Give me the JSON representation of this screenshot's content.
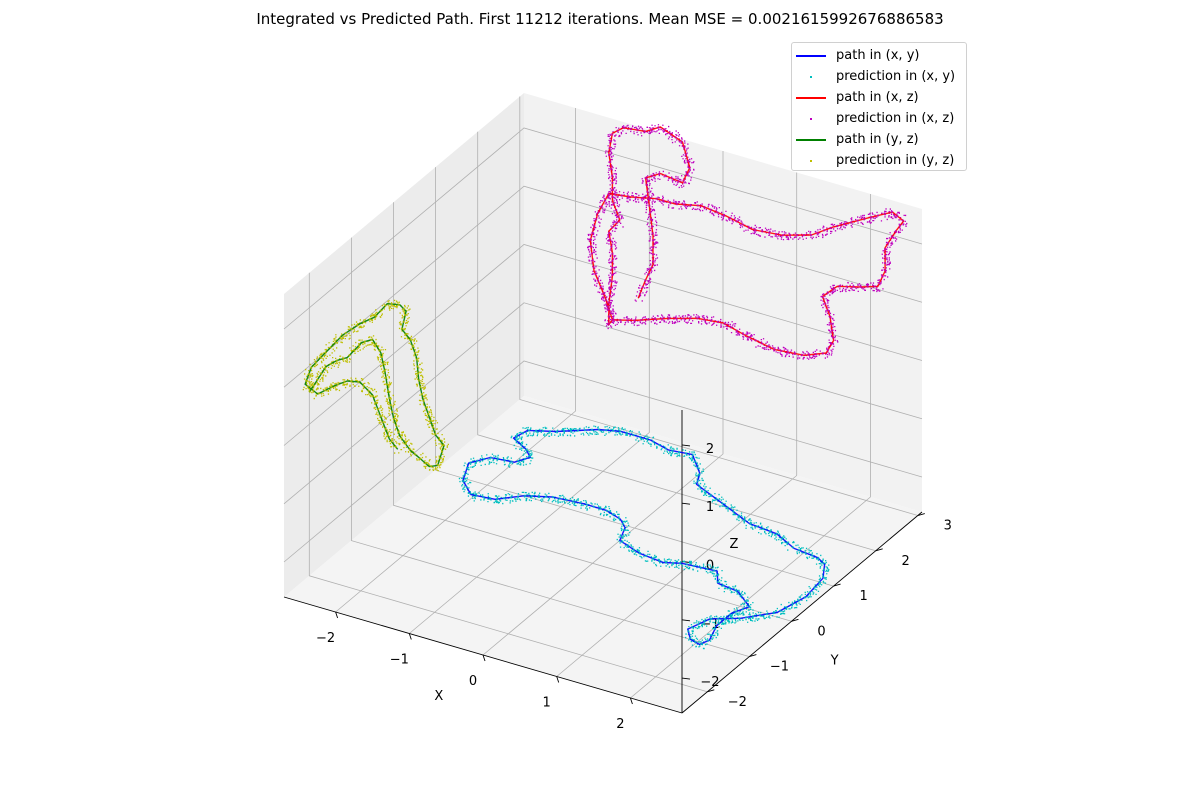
{
  "chart_data": {
    "type": "scatter",
    "projection": "3d",
    "title": "Integrated vs Predicted Path. First 11212 iterations. Mean MSE = 0.0021615992676886583",
    "xlabel": "X",
    "ylabel": "Y",
    "zlabel": "Z",
    "xlim": [
      -2.7,
      2.7
    ],
    "ylim": [
      -2.6,
      3.1
    ],
    "zlim": [
      -2.6,
      2.6
    ],
    "xticks": [
      "−2",
      "−1",
      "0",
      "1",
      "2"
    ],
    "yticks": [
      "−2",
      "−1",
      "0",
      "1",
      "2",
      "3"
    ],
    "zticks": [
      "−2",
      "−1",
      "0",
      "1",
      "2"
    ],
    "grid": true,
    "legend_position": "top-right",
    "legend": [
      {
        "label": "path in (x, y)",
        "kind": "line",
        "color": "#0000ff"
      },
      {
        "label": "prediction in (x, y)",
        "kind": "marker",
        "color": "#00bfbf"
      },
      {
        "label": "path in (x, z)",
        "kind": "line",
        "color": "#ff0000"
      },
      {
        "label": "prediction in (x, z)",
        "kind": "marker",
        "color": "#bf00bf"
      },
      {
        "label": "path in (y, z)",
        "kind": "line",
        "color": "#008000"
      },
      {
        "label": "prediction in (y, z)",
        "kind": "marker",
        "color": "#bfbf00"
      }
    ],
    "series": [
      {
        "plane": "xy",
        "fixed": "z",
        "fixed_value": -2.6,
        "path_color": "#0000ff",
        "prediction_color": "#00bfbf",
        "points": [
          [
            -1.55,
            2.85
          ],
          [
            -1.3,
            2.95
          ],
          [
            -0.9,
            2.95
          ],
          [
            -0.6,
            2.85
          ],
          [
            -0.3,
            2.9
          ],
          [
            0.0,
            2.55
          ],
          [
            0.1,
            2.3
          ],
          [
            0.4,
            2.15
          ],
          [
            0.8,
            1.95
          ],
          [
            1.1,
            1.8
          ],
          [
            1.5,
            1.75
          ],
          [
            1.85,
            1.55
          ],
          [
            2.2,
            1.5
          ],
          [
            2.35,
            1.4
          ],
          [
            2.5,
            1.1
          ],
          [
            2.55,
            0.6
          ],
          [
            2.45,
            0.1
          ],
          [
            2.15,
            -0.25
          ],
          [
            1.85,
            -0.45
          ],
          [
            1.75,
            -0.8
          ],
          [
            1.9,
            -1.0
          ],
          [
            2.05,
            -1.05
          ],
          [
            2.1,
            -0.9
          ],
          [
            2.0,
            -0.55
          ],
          [
            2.0,
            -0.2
          ],
          [
            2.1,
            0.05
          ],
          [
            1.8,
            0.3
          ],
          [
            1.5,
            0.35
          ],
          [
            1.35,
            0.6
          ],
          [
            0.9,
            0.55
          ],
          [
            0.7,
            0.45
          ],
          [
            0.35,
            0.5
          ],
          [
            0.0,
            0.65
          ],
          [
            -0.1,
            0.95
          ],
          [
            -0.25,
            1.1
          ],
          [
            -0.5,
            1.2
          ],
          [
            -0.8,
            1.2
          ],
          [
            -1.2,
            1.15
          ],
          [
            -1.5,
            1.0
          ],
          [
            -1.75,
            0.75
          ],
          [
            -2.05,
            0.7
          ],
          [
            -2.3,
            0.95
          ],
          [
            -2.45,
            1.35
          ],
          [
            -2.3,
            1.6
          ],
          [
            -2.0,
            1.65
          ],
          [
            -1.9,
            1.85
          ],
          [
            -2.05,
            2.0
          ],
          [
            -2.3,
            2.15
          ],
          [
            -2.25,
            2.4
          ],
          [
            -1.95,
            2.55
          ],
          [
            -1.55,
            2.85
          ]
        ]
      },
      {
        "plane": "xz",
        "fixed": "y",
        "fixed_value": 3.1,
        "path_color": "#ff0000",
        "prediction_color": "#bf00bf",
        "points": [
          [
            -1.5,
            -0.85
          ],
          [
            -1.2,
            -0.75
          ],
          [
            -0.75,
            -0.55
          ],
          [
            -0.35,
            -0.4
          ],
          [
            0.0,
            -0.35
          ],
          [
            0.3,
            -0.45
          ],
          [
            0.7,
            -0.55
          ],
          [
            1.1,
            -0.5
          ],
          [
            1.4,
            -0.35
          ],
          [
            1.5,
            -0.1
          ],
          [
            1.45,
            0.3
          ],
          [
            1.35,
            0.6
          ],
          [
            1.55,
            0.85
          ],
          [
            1.85,
            0.95
          ],
          [
            2.1,
            1.05
          ],
          [
            2.2,
            1.35
          ],
          [
            2.2,
            1.75
          ],
          [
            2.35,
            2.1
          ],
          [
            2.45,
            2.3
          ],
          [
            2.3,
            2.4
          ],
          [
            2.0,
            2.2
          ],
          [
            1.5,
            1.85
          ],
          [
            1.2,
            1.6
          ],
          [
            0.8,
            1.45
          ],
          [
            0.4,
            1.4
          ],
          [
            0.05,
            1.5
          ],
          [
            -0.3,
            1.55
          ],
          [
            -0.65,
            1.45
          ],
          [
            -0.9,
            1.45
          ],
          [
            -1.25,
            1.35
          ],
          [
            -1.55,
            1.3
          ],
          [
            -1.7,
            0.9
          ],
          [
            -1.8,
            0.4
          ],
          [
            -1.75,
            -0.1
          ],
          [
            -1.6,
            -0.5
          ],
          [
            -1.5,
            -0.85
          ],
          [
            -1.55,
            -0.95
          ],
          [
            -1.55,
            -0.6
          ],
          [
            -1.5,
            -0.1
          ],
          [
            -1.5,
            0.3
          ],
          [
            -1.55,
            0.65
          ],
          [
            -1.4,
            0.9
          ],
          [
            -1.5,
            1.2
          ],
          [
            -1.5,
            1.6
          ],
          [
            -1.55,
            2.0
          ],
          [
            -1.5,
            2.35
          ],
          [
            -1.35,
            2.5
          ],
          [
            -1.05,
            2.55
          ],
          [
            -0.85,
            2.7
          ],
          [
            -0.55,
            2.55
          ],
          [
            -0.45,
            2.15
          ],
          [
            -0.55,
            1.85
          ],
          [
            -0.85,
            1.9
          ],
          [
            -1.05,
            1.75
          ],
          [
            -1.0,
            1.3
          ],
          [
            -0.95,
            0.8
          ],
          [
            -0.95,
            0.3
          ],
          [
            -1.05,
            0.0
          ],
          [
            -1.15,
            -0.35
          ]
        ]
      },
      {
        "plane": "yz",
        "fixed": "x",
        "fixed_value": -2.7,
        "path_color": "#008000",
        "prediction_color": "#bfbf00",
        "points": [
          [
            -2.0,
            0.55
          ],
          [
            -1.6,
            0.75
          ],
          [
            -1.35,
            0.7
          ],
          [
            -1.1,
            0.6
          ],
          [
            -0.75,
            0.65
          ],
          [
            -0.5,
            0.55
          ],
          [
            -0.3,
            0.2
          ],
          [
            -0.2,
            -0.2
          ],
          [
            -0.1,
            -0.7
          ],
          [
            0.0,
            -1.1
          ],
          [
            0.15,
            -1.5
          ],
          [
            0.4,
            -1.9
          ],
          [
            0.65,
            -2.2
          ],
          [
            0.85,
            -2.45
          ],
          [
            1.05,
            -2.55
          ],
          [
            1.2,
            -2.3
          ],
          [
            1.0,
            -2.0
          ],
          [
            0.85,
            -1.6
          ],
          [
            0.7,
            -1.2
          ],
          [
            0.6,
            -0.8
          ],
          [
            0.55,
            -0.4
          ],
          [
            0.4,
            0.0
          ],
          [
            0.2,
            0.3
          ],
          [
            0.3,
            0.55
          ],
          [
            0.15,
            0.75
          ],
          [
            -0.15,
            0.95
          ],
          [
            -0.45,
            0.9
          ],
          [
            -0.8,
            1.0
          ],
          [
            -1.2,
            1.05
          ],
          [
            -1.6,
            1.0
          ],
          [
            -1.95,
            0.95
          ],
          [
            -2.1,
            0.75
          ],
          [
            -1.8,
            0.4
          ],
          [
            -1.4,
            0.3
          ],
          [
            -1.1,
            0.2
          ],
          [
            -0.8,
            0.0
          ],
          [
            -0.5,
            -0.4
          ],
          [
            -0.3,
            -0.9
          ],
          [
            -0.1,
            -1.4
          ],
          [
            0.1,
            -1.7
          ]
        ]
      }
    ]
  }
}
